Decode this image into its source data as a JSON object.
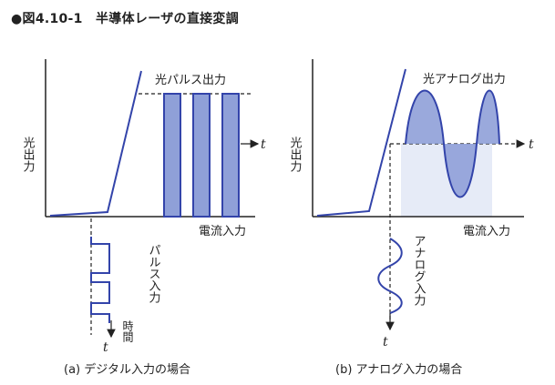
{
  "figure": {
    "title": "●図4.10-1　半導体レーザの直接変調",
    "colors": {
      "line": "#3344aa",
      "fill": "#8fa0d8",
      "fill_light": "#c8d2ee",
      "axis": "#222222"
    }
  },
  "panel_a": {
    "y_axis_label": "光出力",
    "x_axis_label": "電流入力",
    "output_label": "光パルス出力",
    "output_time_label": "t",
    "input_label": "パルス入力",
    "input_time_label": "時間",
    "input_time_var": "t",
    "caption": "(a)  デジタル入力の場合"
  },
  "panel_b": {
    "y_axis_label": "光出力",
    "x_axis_label": "電流入力",
    "output_label": "光アナログ出力",
    "output_time_label": "t",
    "input_label": "アナログ入力",
    "input_time_var": "t",
    "caption": "(b)  アナログ入力の場合"
  }
}
